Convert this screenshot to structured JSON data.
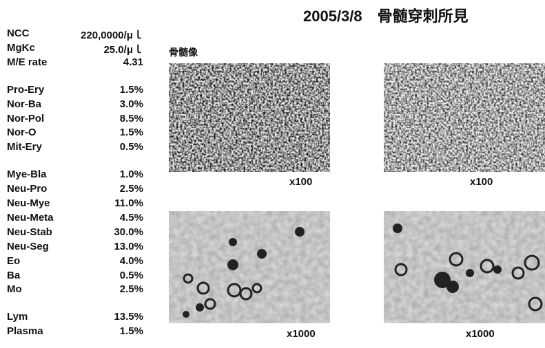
{
  "header": {
    "title": "2005/3/8　骨髄穿刺所見"
  },
  "groups": [
    {
      "rows": [
        [
          "NCC",
          "220,0000/μｌ"
        ],
        [
          "MgKc",
          "25.0/μｌ"
        ],
        [
          "M/E rate",
          "4.31"
        ]
      ]
    },
    {
      "rows": [
        [
          "Pro-Ery",
          "1.5%"
        ],
        [
          "Nor-Ba",
          "3.0%"
        ],
        [
          "Nor-Pol",
          "8.5%"
        ],
        [
          "Nor-O",
          "1.5%"
        ],
        [
          "Mit-Ery",
          "0.5%"
        ]
      ]
    },
    {
      "rows": [
        [
          "Mye-Bla",
          "1.0%"
        ],
        [
          "Neu-Pro",
          "2.5%"
        ],
        [
          "Neu-Mye",
          "11.0%"
        ],
        [
          "Neu-Meta",
          "4.5%"
        ],
        [
          "Neu-Stab",
          "30.0%"
        ],
        [
          "Neu-Seg",
          "13.0%"
        ],
        [
          "Eo",
          "4.0%"
        ],
        [
          "Ba",
          "0.5%"
        ],
        [
          "Mo",
          "2.5%"
        ]
      ]
    },
    {
      "rows": [
        [
          "Lym",
          "13.5%"
        ],
        [
          "Plasma",
          "1.5%"
        ]
      ]
    }
  ],
  "section_label": "骨髄像",
  "images": [
    {
      "caption": "x100"
    },
    {
      "caption": "x100"
    },
    {
      "caption": "x1000"
    },
    {
      "caption": "x1000"
    }
  ]
}
